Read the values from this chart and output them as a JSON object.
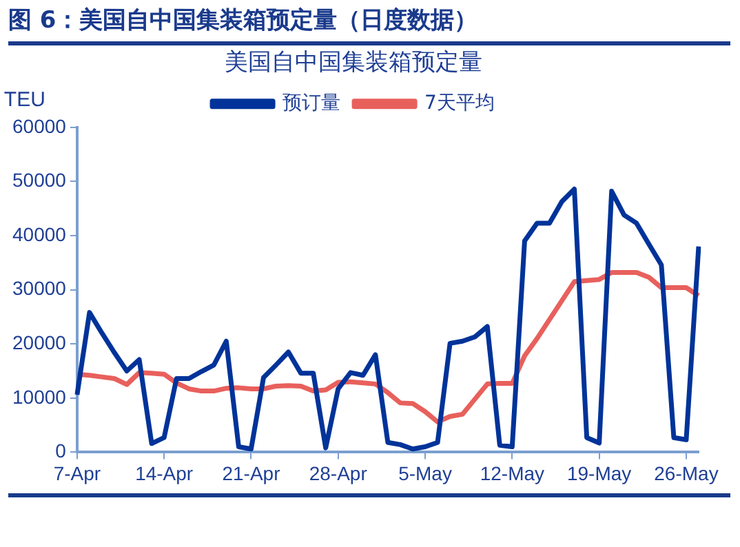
{
  "chart_data": {
    "type": "line",
    "title": "图 6：美国自中国集装箱预定量（日度数据）",
    "subtitle": "美国自中国集装箱预定量",
    "ylabel": "TEU",
    "categories": [
      "7-Apr",
      null,
      null,
      null,
      null,
      null,
      null,
      "14-Apr",
      null,
      null,
      null,
      null,
      null,
      null,
      "21-Apr",
      null,
      null,
      null,
      null,
      null,
      null,
      "28-Apr",
      null,
      null,
      null,
      null,
      null,
      null,
      "5-May",
      null,
      null,
      null,
      null,
      null,
      null,
      "12-May",
      null,
      null,
      null,
      null,
      null,
      null,
      "19-May",
      null,
      null,
      null,
      null,
      null,
      null,
      "26-May",
      null
    ],
    "series": [
      {
        "name": "预订量",
        "color": "#003399",
        "values": [
          10600,
          25800,
          22000,
          18400,
          15000,
          17100,
          1600,
          2700,
          13600,
          13600,
          14900,
          16100,
          20500,
          1000,
          600,
          13800,
          16100,
          18500,
          14600,
          14600,
          800,
          11700,
          14700,
          14200,
          18000,
          1800,
          1400,
          600,
          1000,
          1800,
          20100,
          20500,
          21300,
          23200,
          1300,
          1000,
          39000,
          42300,
          42300,
          46300,
          48600,
          2700,
          1700,
          48200,
          43800,
          42300,
          38400,
          34600,
          2700,
          2300,
          38000
        ]
      },
      {
        "name": "7天平均",
        "color": "#e8605c",
        "values": [
          14400,
          14200,
          13900,
          13600,
          12500,
          14700,
          14600,
          14400,
          12800,
          11700,
          11300,
          11300,
          11800,
          11900,
          11700,
          11700,
          12200,
          12300,
          12200,
          11300,
          11500,
          12900,
          13000,
          12800,
          12600,
          11000,
          9100,
          9000,
          7500,
          5600,
          6600,
          7000,
          9800,
          12600,
          12700,
          12700,
          17800,
          21000,
          24500,
          28000,
          31500,
          31700,
          31900,
          33200,
          33200,
          33200,
          32300,
          30400,
          30400,
          30400,
          28900
        ]
      }
    ],
    "ylim": [
      0,
      60000
    ],
    "yticks": [
      0,
      10000,
      20000,
      30000,
      40000,
      50000,
      60000
    ],
    "legend": "top",
    "marker": "none",
    "line_style": "solid"
  }
}
